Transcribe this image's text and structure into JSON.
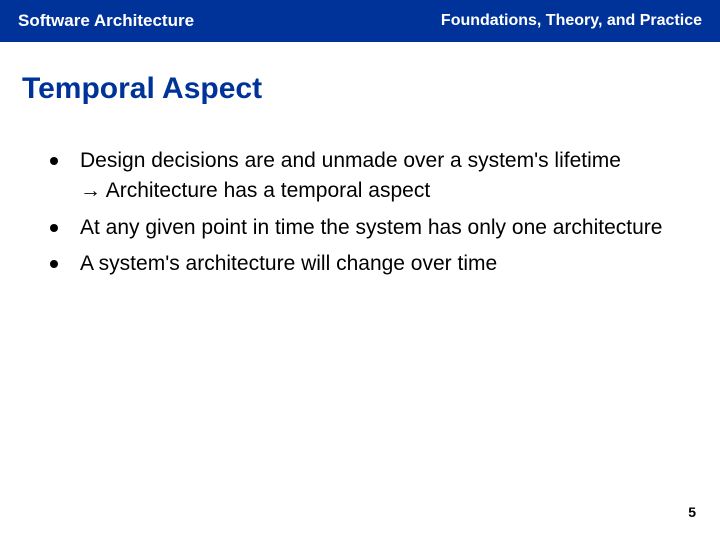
{
  "header": {
    "left": "Software Architecture",
    "right": "Foundations, Theory, and Practice"
  },
  "title": "Temporal Aspect",
  "bullets": [
    {
      "text": "Design decisions are and unmade over a system's lifetime",
      "sub": "Architecture has a temporal aspect",
      "arrow": "→"
    },
    {
      "text": "At any given point in time the system has only one architecture"
    },
    {
      "text": "A system's architecture will change over time"
    }
  ],
  "pageNumber": "5",
  "colors": {
    "headerBg": "#003399",
    "headerText": "#ffffff",
    "titleText": "#003399",
    "bodyText": "#000000",
    "bulletDot": "#000000",
    "background": "#ffffff"
  },
  "typography": {
    "headerLeftSize": 17,
    "headerRightSize": 16,
    "titleSize": 30,
    "bodySize": 21,
    "pageNumSize": 14
  }
}
